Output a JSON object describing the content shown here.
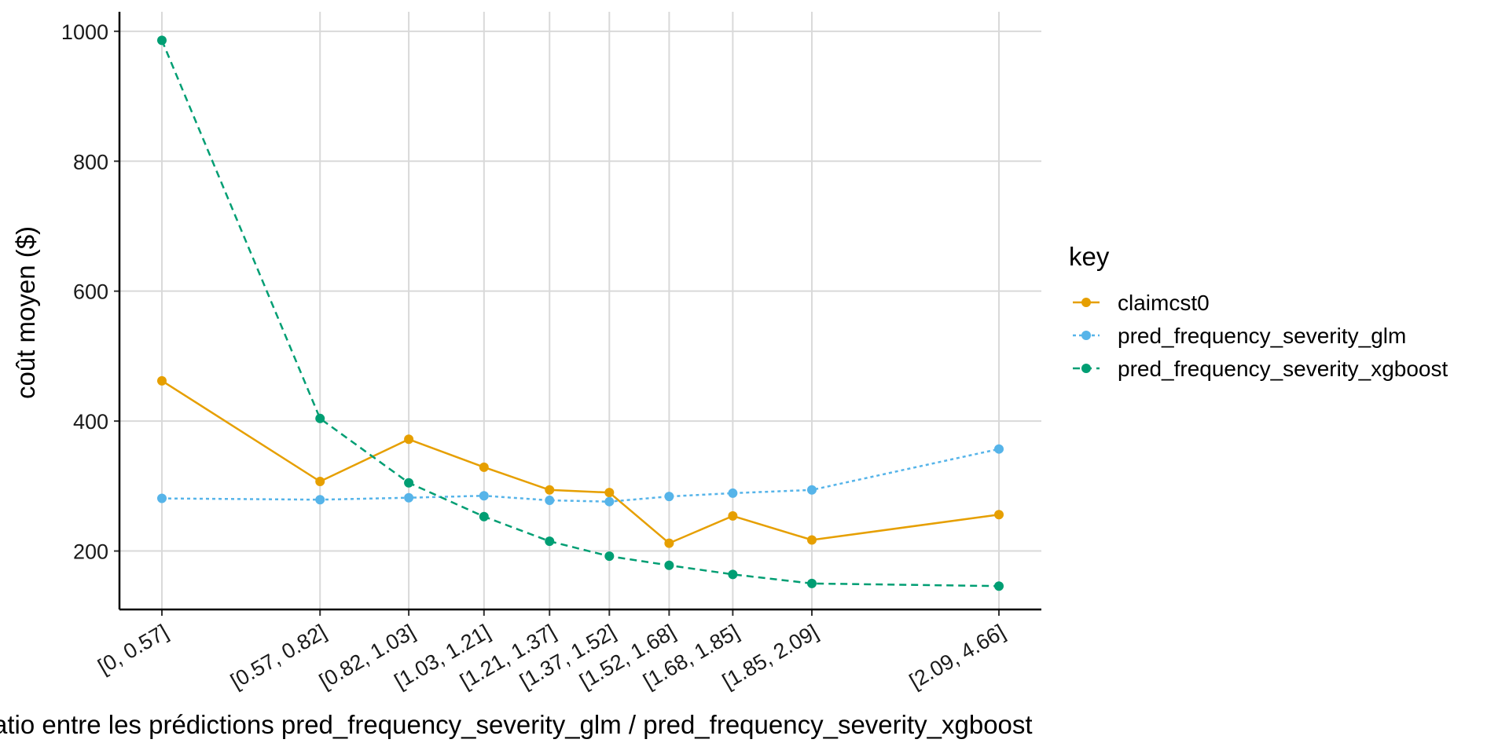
{
  "chart_data": {
    "type": "line",
    "categories": [
      "[0, 0.57]",
      "[0.57, 0.82]",
      "[0.82, 1.03]",
      "[1.03, 1.21]",
      "[1.21, 1.37]",
      "[1.37, 1.52]",
      "[1.52, 1.68]",
      "[1.68, 1.85]",
      "[1.85, 2.09]",
      "[2.09, 4.66]"
    ],
    "x": [
      0.285,
      0.695,
      0.925,
      1.12,
      1.29,
      1.445,
      1.6,
      1.765,
      1.97,
      2.455
    ],
    "series": [
      {
        "name": "claimcst0",
        "color": "#E69F00",
        "dash": "solid",
        "values": [
          462,
          307,
          372,
          329,
          294,
          290,
          212,
          254,
          217,
          256
        ]
      },
      {
        "name": "pred_frequency_severity_glm",
        "color": "#56B4E9",
        "dash": "dotted",
        "values": [
          281,
          279,
          282,
          285,
          278,
          276,
          284,
          289,
          294,
          357
        ]
      },
      {
        "name": "pred_frequency_severity_xgboost",
        "color": "#009E73",
        "dash": "dashed",
        "values": [
          986,
          404,
          305,
          253,
          215,
          192,
          178,
          164,
          150,
          146
        ]
      }
    ],
    "xlabel": "ratio entre les prédictions pred_frequency_severity_glm / pred_frequency_severity_xgboost",
    "ylabel": "coût moyen ($)",
    "yticks": [
      200,
      400,
      600,
      800,
      1000
    ],
    "ylim": [
      110,
      1030
    ],
    "xlim": [
      0.175,
      2.565
    ],
    "grid": true,
    "legend": {
      "title": "key",
      "placement": "right"
    }
  }
}
